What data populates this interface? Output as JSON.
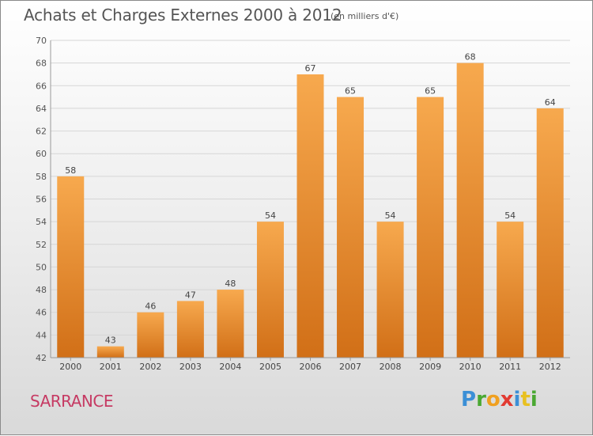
{
  "header": {
    "title": "Achats et Charges Externes 2000 à 2012",
    "subtitle": "(en milliers d'€)"
  },
  "footer": {
    "commune": "SARRANCE",
    "logo_letters": [
      "P",
      "r",
      "o",
      "x",
      "i",
      "t",
      "i"
    ]
  },
  "colors": {
    "bar_light": "#f7a94e",
    "bar_dark": "#d16f17",
    "title": "#555555",
    "commune": "#c63a63",
    "grid": "#d6d6d6"
  },
  "chart_data": {
    "type": "bar",
    "categories": [
      "2000",
      "2001",
      "2002",
      "2003",
      "2004",
      "2005",
      "2006",
      "2007",
      "2008",
      "2009",
      "2010",
      "2011",
      "2012"
    ],
    "values": [
      58,
      43,
      46,
      47,
      48,
      54,
      67,
      65,
      54,
      65,
      68,
      54,
      64
    ],
    "data_labels": [
      "58",
      "43",
      "46",
      "47",
      "48",
      "54",
      "67",
      "65",
      "54",
      "65",
      "68",
      "54",
      "64"
    ],
    "yticks": [
      "42",
      "44",
      "46",
      "48",
      "50",
      "52",
      "54",
      "56",
      "58",
      "60",
      "62",
      "64",
      "66",
      "68",
      "70"
    ],
    "ylim": [
      42,
      70
    ],
    "grid": true,
    "title": "Achats et Charges Externes 2000 à 2012",
    "xlabel": "",
    "ylabel": ""
  }
}
